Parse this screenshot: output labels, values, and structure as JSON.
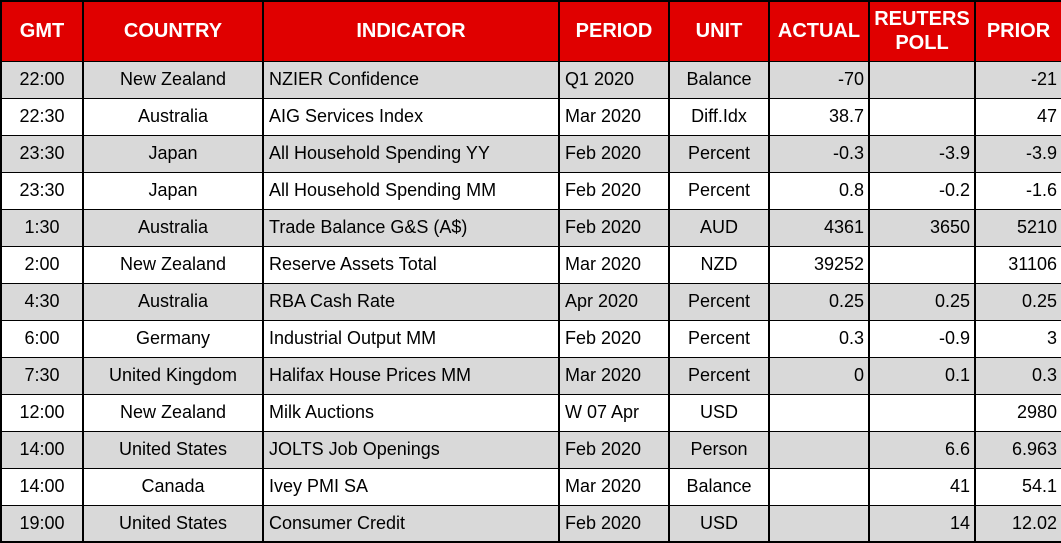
{
  "colors": {
    "header_bg": "#e00000",
    "header_text": "#ffffff",
    "row_alt_bg": "#d9d9d9",
    "row_bg": "#ffffff",
    "border": "#000000",
    "text": "#000000"
  },
  "table": {
    "columns": [
      {
        "key": "gmt",
        "label": "GMT",
        "align": "center"
      },
      {
        "key": "country",
        "label": "COUNTRY",
        "align": "center"
      },
      {
        "key": "indicator",
        "label": "INDICATOR",
        "align": "left"
      },
      {
        "key": "period",
        "label": "PERIOD",
        "align": "left"
      },
      {
        "key": "unit",
        "label": "UNIT",
        "align": "center"
      },
      {
        "key": "actual",
        "label": "ACTUAL",
        "align": "right"
      },
      {
        "key": "poll",
        "label": "REUTERS POLL",
        "align": "right"
      },
      {
        "key": "prior",
        "label": "PRIOR",
        "align": "right"
      }
    ],
    "rows": [
      {
        "cells": [
          "22:00",
          "New Zealand",
          "NZIER Confidence",
          "Q1 2020",
          "Balance",
          "-70",
          "",
          "-21"
        ]
      },
      {
        "cells": [
          "22:30",
          "Australia",
          "AIG Services Index",
          "Mar 2020",
          "Diff.Idx",
          "38.7",
          "",
          "47"
        ]
      },
      {
        "cells": [
          "23:30",
          "Japan",
          "All Household Spending YY",
          "Feb 2020",
          "Percent",
          "-0.3",
          "-3.9",
          "-3.9"
        ]
      },
      {
        "cells": [
          "23:30",
          "Japan",
          "All Household Spending MM",
          "Feb 2020",
          "Percent",
          "0.8",
          "-0.2",
          "-1.6"
        ]
      },
      {
        "cells": [
          "1:30",
          "Australia",
          "Trade Balance G&S (A$)",
          "Feb 2020",
          "AUD",
          "4361",
          "3650",
          "5210"
        ]
      },
      {
        "cells": [
          "2:00",
          "New Zealand",
          "Reserve Assets Total",
          "Mar 2020",
          "NZD",
          "39252",
          "",
          "31106"
        ]
      },
      {
        "cells": [
          "4:30",
          "Australia",
          "RBA Cash Rate",
          "Apr 2020",
          "Percent",
          "0.25",
          "0.25",
          "0.25"
        ]
      },
      {
        "cells": [
          "6:00",
          "Germany",
          "Industrial Output MM",
          "Feb 2020",
          "Percent",
          "0.3",
          "-0.9",
          "3"
        ]
      },
      {
        "cells": [
          "7:30",
          "United Kingdom",
          "Halifax House Prices MM",
          "Mar 2020",
          "Percent",
          "0",
          "0.1",
          "0.3"
        ]
      },
      {
        "cells": [
          "12:00",
          "New Zealand",
          "Milk Auctions",
          "W 07 Apr",
          "USD",
          "",
          "",
          "2980"
        ]
      },
      {
        "cells": [
          "14:00",
          "United States",
          "JOLTS Job Openings",
          "Feb 2020",
          "Person",
          "",
          "6.6",
          "6.963"
        ]
      },
      {
        "cells": [
          "14:00",
          "Canada",
          "Ivey PMI SA",
          "Mar 2020",
          "Balance",
          "",
          "41",
          "54.1"
        ]
      },
      {
        "cells": [
          "19:00",
          "United States",
          "Consumer Credit",
          "Feb 2020",
          "USD",
          "",
          "14",
          "12.02"
        ]
      }
    ]
  }
}
